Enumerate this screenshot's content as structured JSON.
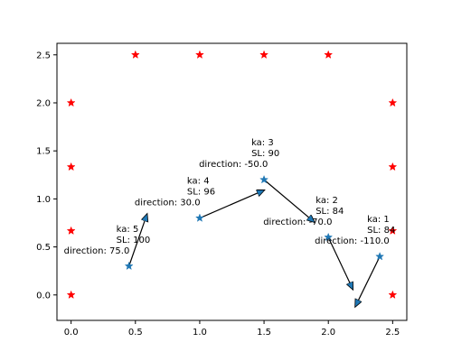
{
  "chart_data": {
    "type": "scatter",
    "title": "",
    "xlabel": "",
    "ylabel": "",
    "xlim": [
      -0.11,
      2.61
    ],
    "ylim": [
      -0.265,
      2.62
    ],
    "grid": false,
    "xticks": [
      0.0,
      0.5,
      1.0,
      1.5,
      2.0,
      2.5
    ],
    "yticks": [
      0.0,
      0.5,
      1.0,
      1.5,
      2.0,
      2.5
    ],
    "xtick_labels": [
      "0.0",
      "0.5",
      "1.0",
      "1.5",
      "2.0",
      "2.5"
    ],
    "ytick_labels": [
      "0.0",
      "0.5",
      "1.0",
      "1.5",
      "2.0",
      "2.5"
    ],
    "boundary_points": {
      "color": "#ff0000",
      "marker": "star",
      "x": [
        0,
        0,
        0,
        0,
        0.5,
        1,
        1.5,
        2,
        2.5,
        2.5,
        2.5,
        2.5
      ],
      "y": [
        0,
        0.667,
        1.333,
        2,
        2.5,
        2.5,
        2.5,
        2.5,
        2,
        1.333,
        0.667,
        0
      ]
    },
    "ka_points": {
      "color": "#1f77b4",
      "marker": "star",
      "points": [
        {
          "ka": "ka: 1",
          "sl": "SL: 84",
          "direction": "direction: -110.0",
          "x": 2.4,
          "y": 0.4,
          "arrow_to": [
            2.21,
            -0.12
          ]
        },
        {
          "ka": "ka: 2",
          "sl": "SL: 84",
          "direction": "direction: -70.0",
          "x": 2.0,
          "y": 0.6,
          "arrow_to": [
            2.19,
            0.06
          ]
        },
        {
          "ka": "ka: 3",
          "sl": "SL: 90",
          "direction": "direction: -50.0",
          "x": 1.5,
          "y": 1.2,
          "arrow_to": [
            1.89,
            0.76
          ]
        },
        {
          "ka": "ka: 4",
          "sl": "SL: 96",
          "direction": "direction: 30.0",
          "x": 1.0,
          "y": 0.8,
          "arrow_to": [
            1.5,
            1.09
          ]
        },
        {
          "ka": "ka: 5",
          "sl": "SL: 100",
          "direction": "direction: 75.0",
          "x": 0.45,
          "y": 0.3,
          "arrow_to": [
            0.59,
            0.84
          ]
        }
      ]
    }
  }
}
